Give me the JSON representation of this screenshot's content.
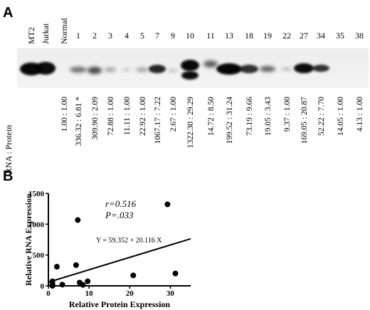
{
  "panel_a": {
    "label": "A",
    "lanes": [
      {
        "name": "MT2",
        "ratio": ""
      },
      {
        "name": "Jurkat",
        "ratio": ""
      },
      {
        "name": "Normal",
        "ratio": "1.00 : 1.00"
      },
      {
        "name": "1",
        "ratio": "336.32 : 6.81 *"
      },
      {
        "name": "2",
        "ratio": "309.90 : 2.09"
      },
      {
        "name": "3",
        "ratio": "72.88 : 1.00"
      },
      {
        "name": "4",
        "ratio": "11.11 : 1.00"
      },
      {
        "name": "5",
        "ratio": "22.92 : 1.00"
      },
      {
        "name": "7",
        "ratio": "1067.17 : 7.22"
      },
      {
        "name": "9",
        "ratio": "2.67 : 1.00"
      },
      {
        "name": "10",
        "ratio": "1322.30 : 29.29"
      },
      {
        "name": "11",
        "ratio": "14.72 : 8.50"
      },
      {
        "name": "13",
        "ratio": "199.52 : 31.24"
      },
      {
        "name": "18",
        "ratio": "73.19 : 9.66"
      },
      {
        "name": "19",
        "ratio": "19.05 : 3.43"
      },
      {
        "name": "22",
        "ratio": "9.37 : 1.00"
      },
      {
        "name": "27",
        "ratio": "169.05 : 20.87"
      },
      {
        "name": "34",
        "ratio": "52.22 : 7.70"
      },
      {
        "name": "35",
        "ratio": "14.05 : 1.00"
      },
      {
        "name": "38",
        "ratio": "4.13 : 1.00"
      }
    ],
    "row_label": "RNA : Protein"
  },
  "panel_b": {
    "label": "B"
  },
  "chart_data": {
    "type": "scatter",
    "xlabel": "Relative Protein Expression",
    "ylabel": "Relative RNA Expression",
    "xlim": [
      0,
      35
    ],
    "ylim": [
      0,
      1500
    ],
    "xticks": [
      0,
      10,
      20,
      30
    ],
    "yticks": [
      0,
      500,
      1000,
      1500
    ],
    "points": [
      {
        "x": 1,
        "y": 1
      },
      {
        "x": 1,
        "y": 73
      },
      {
        "x": 1,
        "y": 11
      },
      {
        "x": 1,
        "y": 23
      },
      {
        "x": 1,
        "y": 3
      },
      {
        "x": 1,
        "y": 9
      },
      {
        "x": 1,
        "y": 14
      },
      {
        "x": 1,
        "y": 4
      },
      {
        "x": 2.09,
        "y": 310
      },
      {
        "x": 3.43,
        "y": 19
      },
      {
        "x": 6.81,
        "y": 336
      },
      {
        "x": 7.22,
        "y": 1067
      },
      {
        "x": 7.7,
        "y": 52
      },
      {
        "x": 8.5,
        "y": 15
      },
      {
        "x": 9.66,
        "y": 73
      },
      {
        "x": 20.87,
        "y": 169
      },
      {
        "x": 29.29,
        "y": 1322
      },
      {
        "x": 31.24,
        "y": 200
      }
    ],
    "regression": {
      "intercept": 59.352,
      "slope": 20.116
    },
    "annotations": {
      "r": "r=0.516",
      "p": "P=.033",
      "equation": "Y = 59.352 + 20.116 X"
    }
  }
}
